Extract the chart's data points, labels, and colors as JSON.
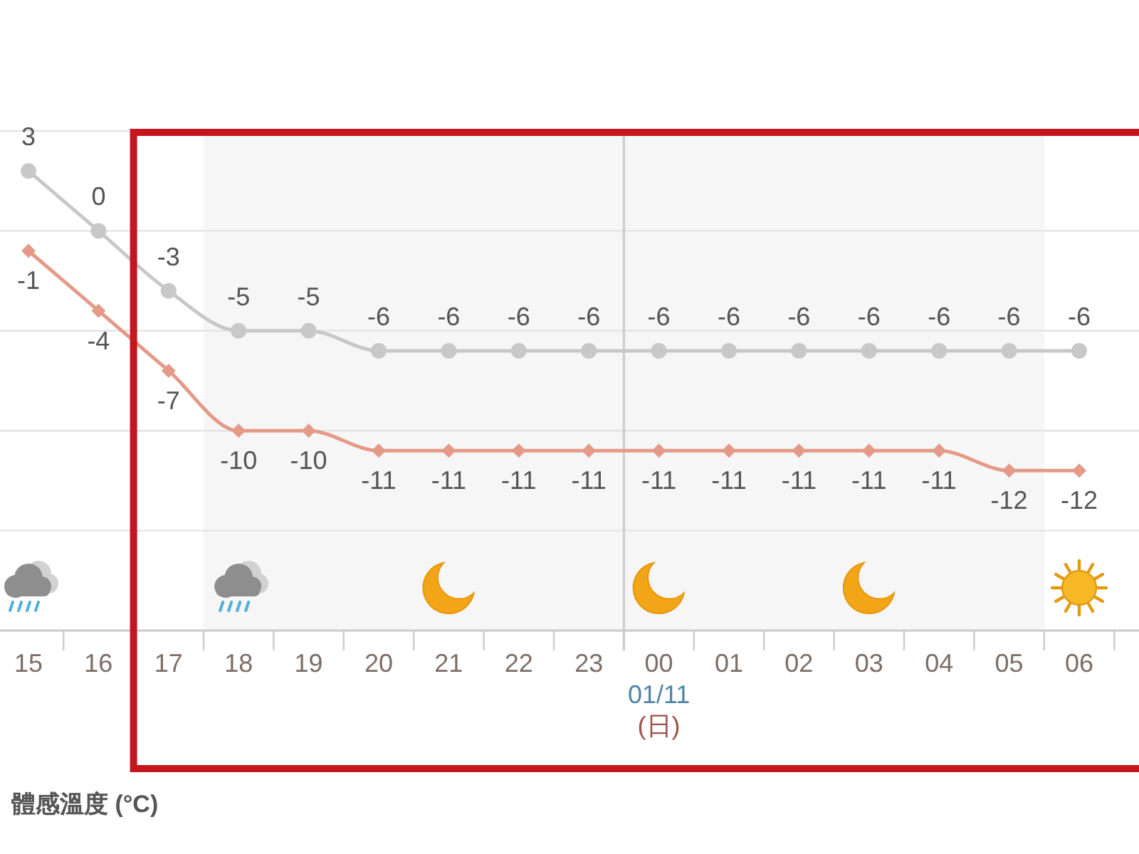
{
  "chart_data": {
    "type": "line",
    "categories": [
      "15",
      "16",
      "17",
      "18",
      "19",
      "20",
      "21",
      "22",
      "23",
      "00",
      "01",
      "02",
      "03",
      "04",
      "05",
      "06"
    ],
    "series": [
      {
        "color": "#c8c8c8",
        "marker": "circle",
        "values": [
          3,
          0,
          -3,
          -5,
          -5,
          -6,
          -6,
          -6,
          -6,
          -6,
          -6,
          -6,
          -6,
          -6,
          -6,
          -6
        ]
      },
      {
        "color": "#e59a88",
        "marker": "diamond",
        "values": [
          -1,
          -4,
          -7,
          -10,
          -10,
          -11,
          -11,
          -11,
          -11,
          -11,
          -11,
          -11,
          -11,
          -11,
          -12,
          -12
        ]
      }
    ],
    "ylim": [
      -20,
      5
    ],
    "yticks": [
      {
        "value": 5,
        "label": null
      },
      {
        "value": 0,
        "label": null
      },
      {
        "value": -5,
        "label": null
      },
      {
        "value": -10,
        "label": null
      },
      {
        "value": -15,
        "label": null
      },
      {
        "value": -20,
        "label": null
      }
    ],
    "tick_labels": "x",
    "grid": "y",
    "data_labels": true,
    "ref_lines": [
      {
        "axis": "x",
        "value": "00",
        "label": "01/11",
        "color": "#cccccc"
      }
    ],
    "bands": [
      {
        "axis": "x",
        "from": "18",
        "to": "05",
        "color": "#f6f6f6"
      }
    ],
    "annotations": [
      "(日)",
      "體感溫度 (°C)"
    ]
  }
}
